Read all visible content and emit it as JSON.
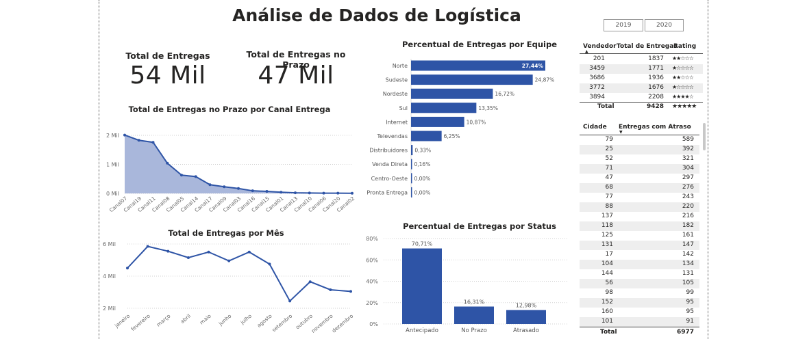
{
  "title": "Análise de Dados de Logística",
  "slicer": [
    "2019",
    "2020"
  ],
  "kpis": [
    {
      "label": "Total de Entregas",
      "value": "54 Mil"
    },
    {
      "label": "Total de Entregas no Prazo",
      "value": "47 Mil"
    }
  ],
  "colors": {
    "accent": "#2E54A6",
    "area": "#A9B7DB",
    "row_alt": "#EEEEEE"
  },
  "charts": {
    "canal": {
      "title": "Total de Entregas no Prazo por Canal Entrega",
      "type": "area",
      "y_ticks": [
        "2 Mil",
        "1 Mil",
        "0 Mil"
      ],
      "ylim": [
        0,
        2000
      ],
      "categories": [
        "Canal07",
        "Canal19",
        "Canal11",
        "Canal08",
        "Canal05",
        "Canal14",
        "Canal17",
        "Canal09",
        "Canal03",
        "Canal16",
        "Canal15",
        "Canal01",
        "Canal13",
        "Canal10",
        "Canal06",
        "Canal20",
        "Canal02"
      ],
      "values": [
        2010,
        1830,
        1760,
        1040,
        630,
        580,
        300,
        230,
        170,
        90,
        70,
        40,
        20,
        15,
        10,
        8,
        5
      ]
    },
    "mes": {
      "title": "Total de Entregas por Mês",
      "type": "line",
      "y_ticks": [
        "6 Mil",
        "4 Mil",
        "2 Mil"
      ],
      "ylim": [
        2000,
        6000
      ],
      "categories": [
        "janeiro",
        "fevereiro",
        "março",
        "abril",
        "maio",
        "junho",
        "julho",
        "agosto",
        "setembro",
        "outubro",
        "novembro",
        "dezembro"
      ],
      "values": [
        4500,
        5850,
        5550,
        5150,
        5500,
        4950,
        5500,
        4750,
        2450,
        3650,
        3150,
        3050
      ]
    },
    "equipe": {
      "title": "Percentual de Entregas por Equipe",
      "type": "bar",
      "categories": [
        "Norte",
        "Sudeste",
        "Nordeste",
        "Sul",
        "Internet",
        "Televendas",
        "Distribuidores",
        "Venda Direta",
        "Centro-Oeste",
        "Pronta Entrega"
      ],
      "values": [
        27.44,
        24.87,
        16.72,
        13.35,
        10.87,
        6.25,
        0.33,
        0.16,
        0.0,
        0.0
      ],
      "labels": [
        "27,44%",
        "24,87%",
        "16,72%",
        "13,35%",
        "10,87%",
        "6,25%",
        "0,33%",
        "0,16%",
        "0,00%",
        "0,00%"
      ]
    },
    "status": {
      "title": "Percentual de Entregas por Status",
      "type": "bar",
      "y_ticks": [
        "80%",
        "60%",
        "40%",
        "20%",
        "0%"
      ],
      "ylim": [
        0,
        80
      ],
      "categories": [
        "Antecipado",
        "No Prazo",
        "Atrasado"
      ],
      "values": [
        70.71,
        16.31,
        12.98
      ],
      "labels": [
        "70,71%",
        "16,31%",
        "12,98%"
      ]
    }
  },
  "vendedor_table": {
    "headers": [
      "Vendedor",
      "Total de Entregas",
      "Rating"
    ],
    "rows": [
      {
        "vendedor": "201",
        "total": "1837",
        "rating": "★★☆☆☆"
      },
      {
        "vendedor": "3459",
        "total": "1771",
        "rating": "★☆☆☆☆"
      },
      {
        "vendedor": "3686",
        "total": "1936",
        "rating": "★★☆☆☆"
      },
      {
        "vendedor": "3772",
        "total": "1676",
        "rating": "★☆☆☆☆"
      },
      {
        "vendedor": "3894",
        "total": "2208",
        "rating": "★★★★☆"
      }
    ],
    "total": {
      "label": "Total",
      "total": "9428",
      "rating": "★★★★★"
    }
  },
  "cidade_table": {
    "headers": [
      "Cidade",
      "Entregas com Atraso"
    ],
    "rows": [
      {
        "cidade": "79",
        "atraso": "589"
      },
      {
        "cidade": "25",
        "atraso": "392"
      },
      {
        "cidade": "52",
        "atraso": "321"
      },
      {
        "cidade": "71",
        "atraso": "304"
      },
      {
        "cidade": "47",
        "atraso": "297"
      },
      {
        "cidade": "68",
        "atraso": "276"
      },
      {
        "cidade": "77",
        "atraso": "243"
      },
      {
        "cidade": "88",
        "atraso": "220"
      },
      {
        "cidade": "137",
        "atraso": "216"
      },
      {
        "cidade": "118",
        "atraso": "182"
      },
      {
        "cidade": "125",
        "atraso": "161"
      },
      {
        "cidade": "131",
        "atraso": "147"
      },
      {
        "cidade": "17",
        "atraso": "142"
      },
      {
        "cidade": "104",
        "atraso": "134"
      },
      {
        "cidade": "144",
        "atraso": "131"
      },
      {
        "cidade": "56",
        "atraso": "105"
      },
      {
        "cidade": "98",
        "atraso": "99"
      },
      {
        "cidade": "152",
        "atraso": "95"
      },
      {
        "cidade": "160",
        "atraso": "95"
      },
      {
        "cidade": "101",
        "atraso": "91"
      }
    ],
    "total": {
      "label": "Total",
      "atraso": "6977"
    }
  },
  "chart_data": [
    {
      "type": "area",
      "title": "Total de Entregas no Prazo por Canal Entrega",
      "categories": [
        "Canal07",
        "Canal19",
        "Canal11",
        "Canal08",
        "Canal05",
        "Canal14",
        "Canal17",
        "Canal09",
        "Canal03",
        "Canal16",
        "Canal15",
        "Canal01",
        "Canal13",
        "Canal10",
        "Canal06",
        "Canal20",
        "Canal02"
      ],
      "values": [
        2010,
        1830,
        1760,
        1040,
        630,
        580,
        300,
        230,
        170,
        90,
        70,
        40,
        20,
        15,
        10,
        8,
        5
      ],
      "ylim": [
        0,
        2000
      ]
    },
    {
      "type": "line",
      "title": "Total de Entregas por Mês",
      "categories": [
        "janeiro",
        "fevereiro",
        "março",
        "abril",
        "maio",
        "junho",
        "julho",
        "agosto",
        "setembro",
        "outubro",
        "novembro",
        "dezembro"
      ],
      "values": [
        4500,
        5850,
        5550,
        5150,
        5500,
        4950,
        5500,
        4750,
        2450,
        3650,
        3150,
        3050
      ],
      "ylim": [
        2000,
        6000
      ]
    },
    {
      "type": "bar",
      "title": "Percentual de Entregas por Equipe",
      "categories": [
        "Norte",
        "Sudeste",
        "Nordeste",
        "Sul",
        "Internet",
        "Televendas",
        "Distribuidores",
        "Venda Direta",
        "Centro-Oeste",
        "Pronta Entrega"
      ],
      "values": [
        27.44,
        24.87,
        16.72,
        13.35,
        10.87,
        6.25,
        0.33,
        0.16,
        0.0,
        0.0
      ]
    },
    {
      "type": "bar",
      "title": "Percentual de Entregas por Status",
      "categories": [
        "Antecipado",
        "No Prazo",
        "Atrasado"
      ],
      "values": [
        70.71,
        16.31,
        12.98
      ],
      "ylim": [
        0,
        80
      ]
    }
  ]
}
